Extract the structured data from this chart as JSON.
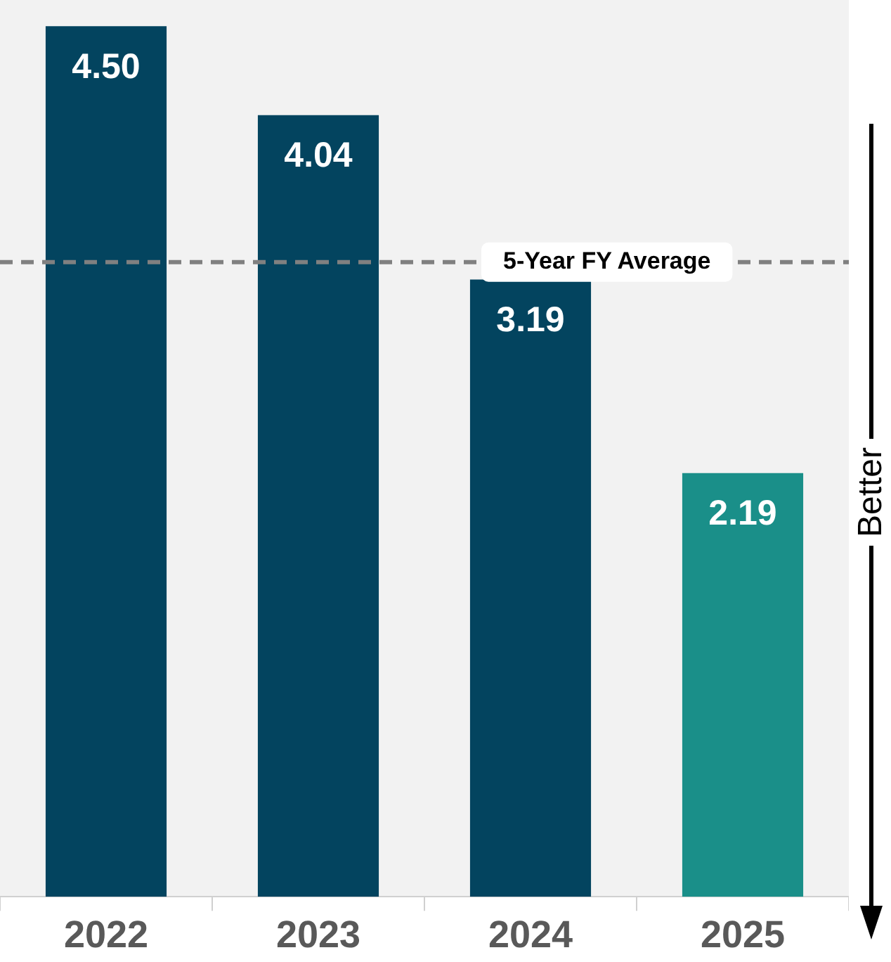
{
  "chart_data": {
    "type": "bar",
    "categories": [
      "2022",
      "2023",
      "2024",
      "2025"
    ],
    "values": [
      4.5,
      4.04,
      3.19,
      2.19
    ],
    "colors": [
      "#03445f",
      "#03445f",
      "#03445f",
      "#1a8f89"
    ],
    "value_labels": [
      "4.50",
      "4.04",
      "3.19",
      "2.19"
    ],
    "ref_lines": [
      {
        "axis": "y",
        "value": 3.28,
        "label": "5-Year FY Average",
        "color": "#808080",
        "line_style": "dashed"
      }
    ],
    "annotations": [
      "Better"
    ],
    "legend": false,
    "grid": false
  }
}
